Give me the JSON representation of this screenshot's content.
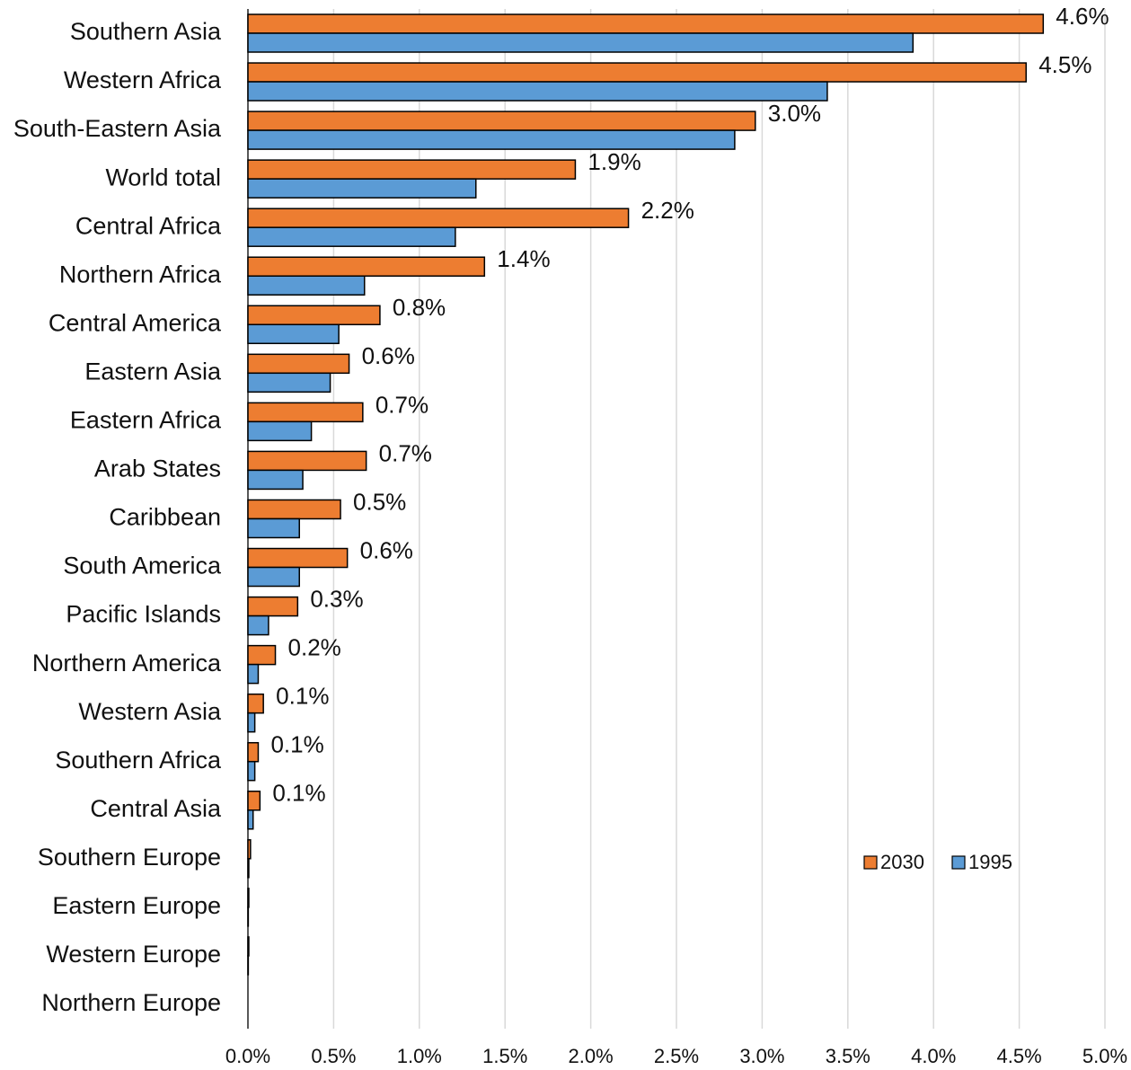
{
  "chart_data": {
    "type": "bar",
    "orientation": "horizontal",
    "categories": [
      "Southern Asia",
      "Western Africa",
      "South-Eastern Asia",
      "World total",
      "Central Africa",
      "Northern Africa",
      "Central America",
      "Eastern Asia",
      "Eastern Africa",
      "Arab States",
      "Caribbean",
      "South America",
      "Pacific Islands",
      "Northern America",
      "Western Asia",
      "Southern Africa",
      "Central Asia",
      "Southern Europe",
      "Eastern Europe",
      "Western Europe",
      "Northern Europe"
    ],
    "series": [
      {
        "name": "2030",
        "color": "#ed7d31",
        "values": [
          4.64,
          4.54,
          2.96,
          1.91,
          2.22,
          1.38,
          0.77,
          0.59,
          0.67,
          0.69,
          0.54,
          0.58,
          0.29,
          0.16,
          0.09,
          0.06,
          0.07,
          0.015,
          0.005,
          0.005,
          0
        ],
        "value_labels": [
          "4.6%",
          "4.5%",
          "3.0%",
          "1.9%",
          "2.2%",
          "1.4%",
          "0.8%",
          "0.6%",
          "0.7%",
          "0.7%",
          "0.5%",
          "0.6%",
          "0.3%",
          "0.2%",
          "0.1%",
          "0.1%",
          "0.1%",
          null,
          null,
          null,
          null
        ]
      },
      {
        "name": "1995",
        "color": "#5b9bd5",
        "values": [
          3.88,
          3.38,
          2.84,
          1.33,
          1.21,
          0.68,
          0.53,
          0.48,
          0.37,
          0.32,
          0.3,
          0.3,
          0.12,
          0.06,
          0.04,
          0.04,
          0.03,
          0.005,
          0.002,
          0.002,
          0
        ]
      }
    ],
    "xlim": [
      0,
      5
    ],
    "xticks": [
      {
        "value": 0,
        "label": "0.0%"
      },
      {
        "value": 0.5,
        "label": "0.5%"
      },
      {
        "value": 1,
        "label": "1.0%"
      },
      {
        "value": 1.5,
        "label": "1.5%"
      },
      {
        "value": 2,
        "label": "2.0%"
      },
      {
        "value": 2.5,
        "label": "2.5%"
      },
      {
        "value": 3,
        "label": "3.0%"
      },
      {
        "value": 3.5,
        "label": "3.5%"
      },
      {
        "value": 4,
        "label": "4.0%"
      },
      {
        "value": 4.5,
        "label": "4.5%"
      },
      {
        "value": 5,
        "label": "5.0%"
      }
    ],
    "grid": true
  }
}
